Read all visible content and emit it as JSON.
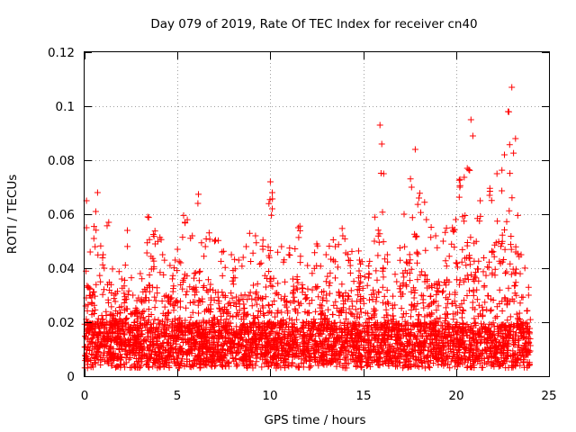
{
  "chart_data": {
    "type": "scatter",
    "title": "Day 079 of 2019, Rate Of TEC Index for receiver cn40",
    "xlabel": "GPS time / hours",
    "ylabel": "ROTI / TECUs",
    "xlim": [
      0,
      25
    ],
    "ylim": [
      0,
      0.12
    ],
    "x_ticks": [
      0,
      5,
      10,
      15,
      20,
      25
    ],
    "y_ticks": [
      0,
      0.02,
      0.04,
      0.06,
      0.08,
      0.1,
      0.12
    ],
    "x_tick_labels": [
      "0",
      "5",
      "10",
      "15",
      "20",
      "25"
    ],
    "y_tick_labels": [
      "0",
      "0.02",
      "0.04",
      "0.06",
      "0.08",
      "0.1",
      "0.12"
    ],
    "grid": true,
    "marker": "+",
    "marker_color": "#ff0000",
    "data_extent_hours": [
      0,
      24
    ],
    "series": [
      {
        "name": "ROTI",
        "note": "Dense cloud of several thousand '+' points; listed here are the envelope peaks and representative points read from the figure.",
        "points": [
          [
            0.1,
            0.065
          ],
          [
            0.1,
            0.055
          ],
          [
            0.3,
            0.046
          ],
          [
            0.5,
            0.051
          ],
          [
            0.6,
            0.061
          ],
          [
            0.7,
            0.068
          ],
          [
            1.0,
            0.045
          ],
          [
            1.3,
            0.057
          ],
          [
            1.6,
            0.03
          ],
          [
            2.0,
            0.036
          ],
          [
            2.3,
            0.054
          ],
          [
            2.6,
            0.03
          ],
          [
            3.0,
            0.038
          ],
          [
            3.4,
            0.059
          ],
          [
            3.8,
            0.049
          ],
          [
            4.2,
            0.045
          ],
          [
            4.6,
            0.041
          ],
          [
            5.0,
            0.047
          ],
          [
            5.4,
            0.057
          ],
          [
            5.8,
            0.052
          ],
          [
            6.1,
            0.064
          ],
          [
            6.5,
            0.048
          ],
          [
            7.0,
            0.05
          ],
          [
            7.4,
            0.046
          ],
          [
            7.9,
            0.045
          ],
          [
            8.3,
            0.043
          ],
          [
            8.7,
            0.048
          ],
          [
            9.2,
            0.052
          ],
          [
            9.6,
            0.047
          ],
          [
            10.0,
            0.072
          ],
          [
            10.1,
            0.068
          ],
          [
            10.1,
            0.062
          ],
          [
            10.6,
            0.048
          ],
          [
            11.0,
            0.045
          ],
          [
            11.5,
            0.055
          ],
          [
            12.0,
            0.041
          ],
          [
            12.5,
            0.049
          ],
          [
            13.0,
            0.045
          ],
          [
            13.5,
            0.048
          ],
          [
            13.9,
            0.052
          ],
          [
            14.3,
            0.041
          ],
          [
            14.8,
            0.043
          ],
          [
            15.3,
            0.038
          ],
          [
            15.6,
            0.05
          ],
          [
            15.9,
            0.093
          ],
          [
            16.0,
            0.086
          ],
          [
            16.1,
            0.075
          ],
          [
            16.3,
            0.045
          ],
          [
            16.8,
            0.035
          ],
          [
            17.2,
            0.06
          ],
          [
            17.6,
            0.07
          ],
          [
            17.8,
            0.084
          ],
          [
            18.0,
            0.066
          ],
          [
            18.4,
            0.058
          ],
          [
            18.9,
            0.052
          ],
          [
            19.3,
            0.05
          ],
          [
            19.8,
            0.055
          ],
          [
            20.2,
            0.07
          ],
          [
            20.6,
            0.077
          ],
          [
            20.8,
            0.095
          ],
          [
            20.9,
            0.089
          ],
          [
            21.3,
            0.065
          ],
          [
            21.8,
            0.067
          ],
          [
            22.2,
            0.075
          ],
          [
            22.6,
            0.082
          ],
          [
            22.8,
            0.098
          ],
          [
            23.0,
            0.107
          ],
          [
            23.2,
            0.088
          ],
          [
            23.5,
            0.045
          ],
          [
            23.9,
            0.03
          ],
          [
            0.4,
            0.012
          ],
          [
            2.0,
            0.01
          ],
          [
            4.0,
            0.009
          ],
          [
            6.0,
            0.011
          ],
          [
            8.0,
            0.012
          ],
          [
            10.0,
            0.01
          ],
          [
            12.0,
            0.011
          ],
          [
            14.0,
            0.012
          ],
          [
            16.0,
            0.01
          ],
          [
            18.0,
            0.012
          ],
          [
            20.0,
            0.011
          ],
          [
            22.0,
            0.013
          ],
          [
            23.8,
            0.012
          ]
        ]
      }
    ]
  }
}
